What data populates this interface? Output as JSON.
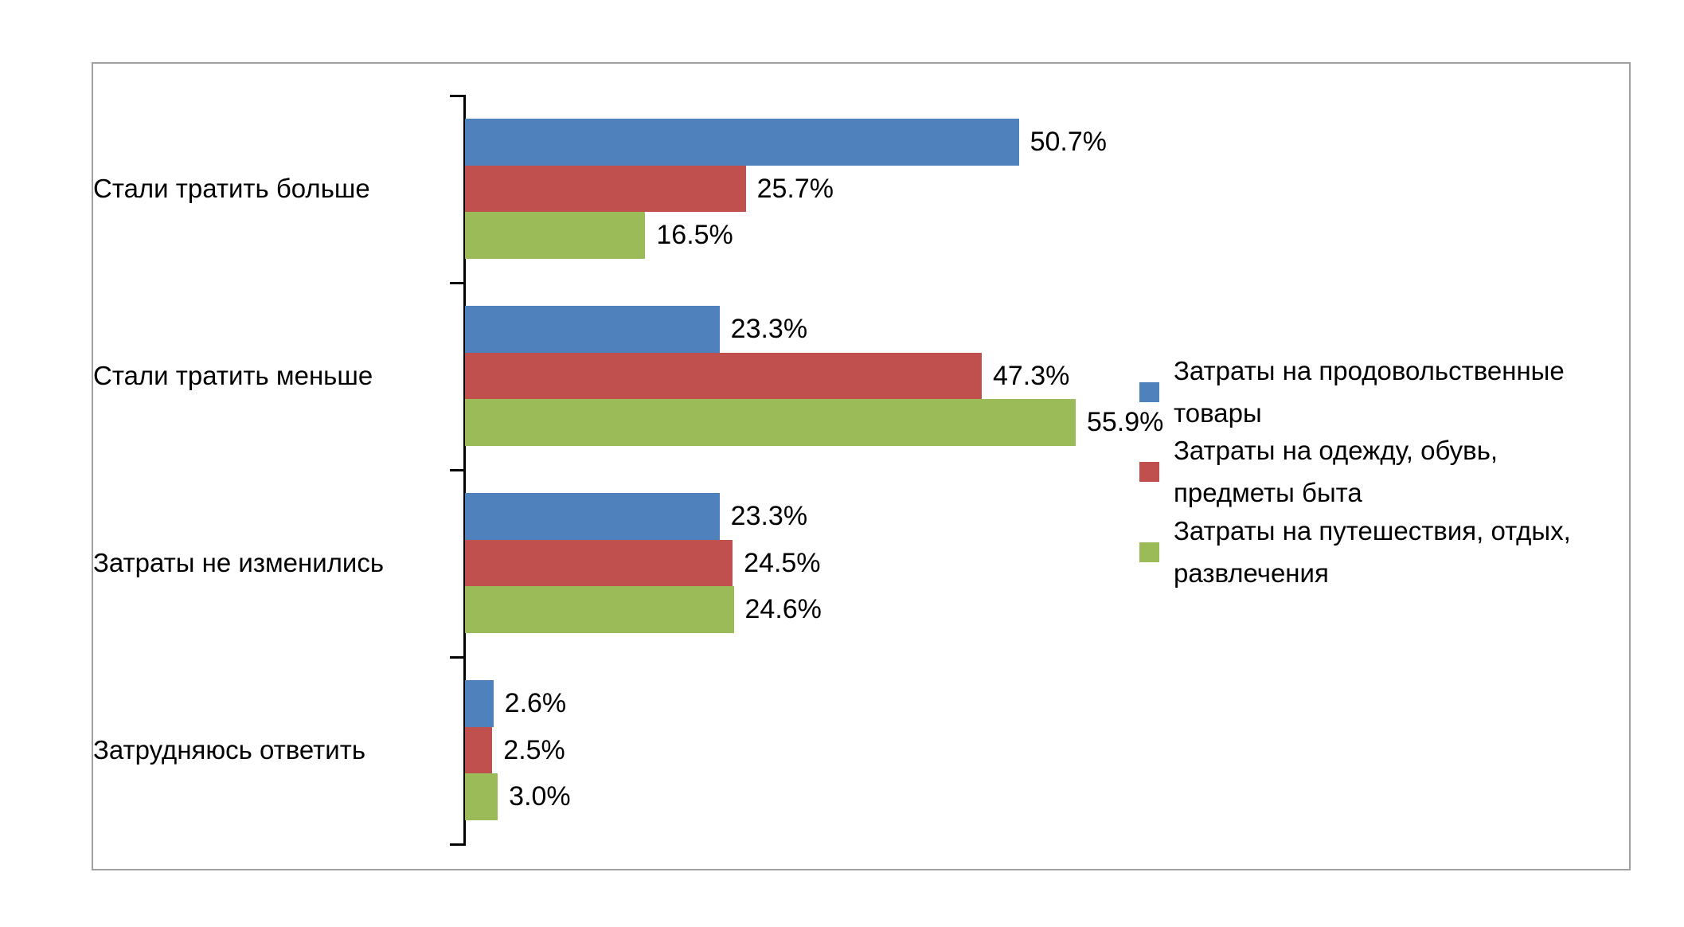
{
  "chart_data": {
    "type": "bar",
    "orientation": "horizontal",
    "title": "",
    "categories": [
      "Стали тратить больше",
      "Стали тратить меньше",
      "Затраты не изменились",
      "Затрудняюсь ответить"
    ],
    "series": [
      {
        "name": "Затраты на продовольственные товары",
        "legend_lines": [
          "Затраты на продовольственные",
          "товары"
        ],
        "color": "#4F81BD",
        "values": [
          50.7,
          23.3,
          23.3,
          2.6
        ]
      },
      {
        "name": "Затраты на одежду, обувь, предметы быта",
        "legend_lines": [
          "Затраты на одежду, обувь,",
          "предметы быта"
        ],
        "color": "#C0504D",
        "values": [
          25.7,
          47.3,
          24.5,
          2.5
        ]
      },
      {
        "name": "Затраты на путешествия, отдых, развлечения",
        "legend_lines": [
          "Затраты на путешествия, отдых,",
          "развлечения"
        ],
        "color": "#9BBB59",
        "values": [
          16.5,
          55.9,
          24.6,
          3.0
        ]
      }
    ],
    "value_labels": [
      "50.7%",
      "25.7%",
      "16.5%",
      "23.3%",
      "47.3%",
      "55.9%",
      "23.3%",
      "24.5%",
      "24.6%",
      "2.6%",
      "2.5%",
      "3.0%"
    ],
    "value_suffix": "%",
    "xlim": [
      0,
      60
    ],
    "grid": false,
    "value_axis_visible": false,
    "legend_position": "right",
    "colors": {
      "axis": "#000000",
      "frame_border": "#A0A0A0",
      "text": "#000000",
      "background": "#FFFFFF"
    }
  }
}
